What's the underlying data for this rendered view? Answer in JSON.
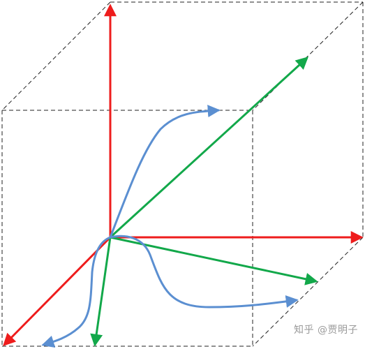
{
  "watermark": "知乎 @贾明子",
  "colors": {
    "axis": "#ee1c1c",
    "vector": "#12a84a",
    "curve": "#5b8fd1",
    "box": "#222222",
    "background": "#ffffff",
    "watermark": "#9a9a9a"
  }
}
